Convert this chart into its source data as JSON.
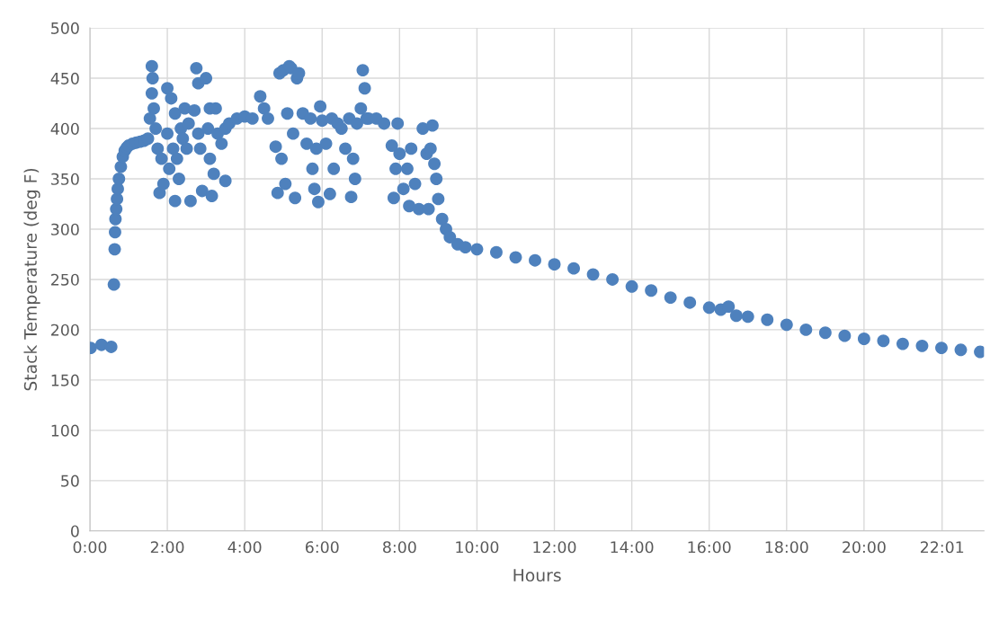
{
  "chart_data": {
    "type": "scatter",
    "xlabel": "Hours",
    "ylabel": "Stack Temperature (deg F)",
    "xlim": [
      0,
      23.1
    ],
    "ylim": [
      0,
      500
    ],
    "xticks": [
      {
        "value": 0,
        "label": "0:00"
      },
      {
        "value": 2,
        "label": "2:00"
      },
      {
        "value": 4,
        "label": "4:00"
      },
      {
        "value": 6,
        "label": "6:00"
      },
      {
        "value": 8,
        "label": "8:00"
      },
      {
        "value": 10,
        "label": "10:00"
      },
      {
        "value": 12,
        "label": "12:00"
      },
      {
        "value": 14,
        "label": "14:00"
      },
      {
        "value": 16,
        "label": "16:00"
      },
      {
        "value": 18,
        "label": "18:00"
      },
      {
        "value": 20,
        "label": "20:00"
      },
      {
        "value": 22.017,
        "label": "22:01"
      }
    ],
    "yticks": [
      0,
      50,
      100,
      150,
      200,
      250,
      300,
      350,
      400,
      450,
      500
    ],
    "grid": true,
    "marker": "circle",
    "legend": false,
    "series": [
      {
        "color": "#4e81bd",
        "x": [
          0.02,
          0.3,
          0.55,
          0.62,
          0.64,
          0.65,
          0.66,
          0.68,
          0.7,
          0.72,
          0.75,
          0.8,
          0.85,
          0.9,
          0.95,
          1.0,
          1.1,
          1.2,
          1.3,
          1.4,
          1.5,
          1.55,
          1.6,
          1.6,
          1.62,
          1.65,
          1.7,
          1.75,
          1.8,
          1.85,
          1.9,
          2.0,
          2.0,
          2.05,
          2.1,
          2.15,
          2.2,
          2.2,
          2.25,
          2.3,
          2.35,
          2.4,
          2.45,
          2.5,
          2.55,
          2.6,
          2.7,
          2.75,
          2.8,
          2.8,
          2.85,
          2.9,
          3.0,
          3.05,
          3.1,
          3.1,
          3.15,
          3.2,
          3.25,
          3.3,
          3.4,
          3.5,
          3.5,
          3.6,
          3.8,
          4.0,
          4.2,
          4.4,
          4.5,
          4.6,
          4.8,
          4.85,
          4.9,
          4.95,
          5.0,
          5.05,
          5.1,
          5.15,
          5.2,
          5.25,
          5.3,
          5.35,
          5.4,
          5.5,
          5.6,
          5.7,
          5.75,
          5.8,
          5.85,
          5.9,
          5.95,
          6.0,
          6.1,
          6.2,
          6.25,
          6.3,
          6.4,
          6.5,
          6.6,
          6.7,
          6.75,
          6.8,
          6.85,
          6.9,
          7.0,
          7.05,
          7.1,
          7.15,
          7.2,
          7.4,
          7.6,
          7.8,
          7.85,
          7.9,
          7.95,
          8.0,
          8.1,
          8.2,
          8.25,
          8.3,
          8.4,
          8.5,
          8.6,
          8.7,
          8.75,
          8.8,
          8.85,
          8.9,
          8.95,
          9.0,
          9.1,
          9.2,
          9.3,
          9.5,
          9.7,
          10.0,
          10.5,
          11.0,
          11.5,
          12.0,
          12.5,
          13.0,
          13.5,
          14.0,
          14.5,
          15.0,
          15.5,
          16.0,
          16.3,
          16.5,
          16.7,
          17.0,
          17.5,
          18.0,
          18.5,
          19.0,
          19.5,
          20.0,
          20.5,
          21.0,
          21.5,
          22.0,
          22.5,
          23.0
        ],
        "values": [
          182,
          185,
          183,
          245,
          280,
          297,
          310,
          320,
          330,
          340,
          350,
          362,
          372,
          378,
          381,
          383,
          385,
          386,
          387,
          388,
          390,
          410,
          462,
          435,
          450,
          420,
          400,
          380,
          336,
          370,
          345,
          395,
          440,
          360,
          430,
          380,
          328,
          415,
          370,
          350,
          400,
          390,
          420,
          380,
          405,
          328,
          418,
          460,
          445,
          395,
          380,
          338,
          450,
          400,
          420,
          370,
          333,
          355,
          420,
          395,
          385,
          348,
          400,
          405,
          410,
          412,
          410,
          432,
          420,
          410,
          382,
          336,
          455,
          370,
          458,
          345,
          415,
          462,
          460,
          395,
          331,
          450,
          455,
          415,
          385,
          410,
          360,
          340,
          380,
          327,
          422,
          408,
          385,
          335,
          410,
          360,
          405,
          400,
          380,
          410,
          332,
          370,
          350,
          405,
          420,
          458,
          440,
          410,
          410,
          410,
          405,
          383,
          331,
          360,
          405,
          375,
          340,
          360,
          323,
          380,
          345,
          320,
          400,
          375,
          320,
          380,
          403,
          365,
          350,
          330,
          310,
          300,
          292,
          285,
          282,
          280,
          277,
          272,
          269,
          265,
          261,
          255,
          250,
          243,
          239,
          232,
          227,
          222,
          220,
          223,
          214,
          213,
          210,
          205,
          200,
          197,
          194,
          191,
          189,
          186,
          184,
          182,
          180,
          178
        ]
      }
    ]
  }
}
